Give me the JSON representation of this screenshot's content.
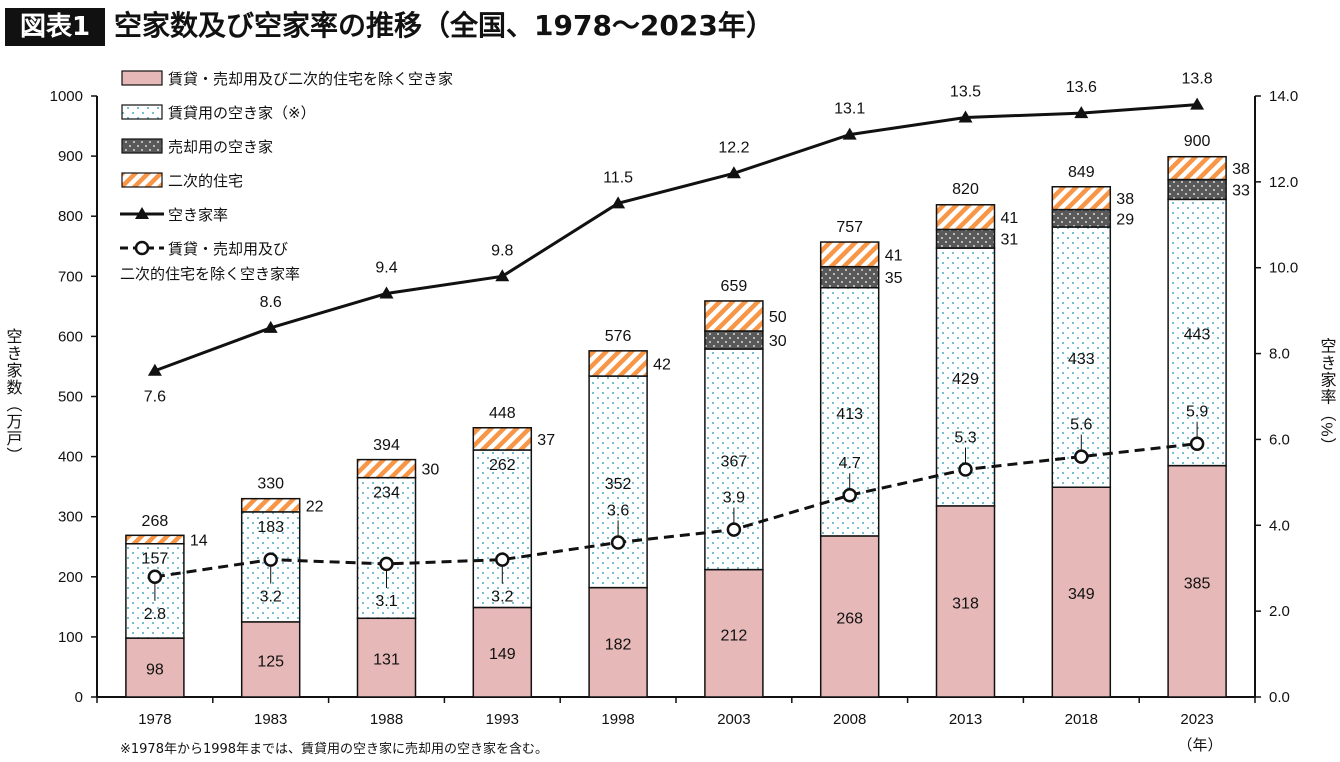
{
  "header": {
    "badge": "図表1",
    "title": "空家数及び空家率の推移（全国、1978～2023年）"
  },
  "footnote": "※1978年から1998年までは、賃貸用の空き家に売却用の空き家を含む。",
  "chart_data": {
    "type": "bar",
    "subtype": "stacked bar with line overlay (dual axis)",
    "categories": [
      "1978",
      "1983",
      "1988",
      "1993",
      "1998",
      "2003",
      "2008",
      "2013",
      "2018",
      "2023"
    ],
    "xunit": "（年）",
    "ylabel": "空き家数（万戸）",
    "ylabel_right": "空き家率（%）",
    "ylim": [
      0,
      1000
    ],
    "yticks": [
      0,
      100,
      200,
      300,
      400,
      500,
      600,
      700,
      800,
      900,
      1000
    ],
    "ylim_right": [
      0,
      14
    ],
    "yticks_right": [
      "0.0",
      "2.0",
      "4.0",
      "6.0",
      "8.0",
      "10.0",
      "12.0",
      "14.0"
    ],
    "grid": false,
    "legend": "top-left",
    "series": [
      {
        "name": "賃貸・売却用及び二次的住宅を除く空き家",
        "kind": "bar",
        "color": "#e6b8b7",
        "values": [
          98,
          125,
          131,
          149,
          182,
          212,
          268,
          318,
          349,
          385
        ]
      },
      {
        "name": "賃貸用の空き家（※）",
        "kind": "bar",
        "color": "#ffffff",
        "dot_color": "#4bacc6",
        "values": [
          157,
          183,
          234,
          262,
          352,
          367,
          413,
          429,
          433,
          443
        ]
      },
      {
        "name": "売却用の空き家",
        "kind": "bar",
        "color": "#595959",
        "values": [
          null,
          null,
          null,
          null,
          null,
          30,
          35,
          31,
          29,
          33
        ]
      },
      {
        "name": "二次的住宅",
        "kind": "bar",
        "color": "#f79646",
        "values": [
          14,
          22,
          30,
          37,
          42,
          50,
          41,
          41,
          38,
          38
        ]
      },
      {
        "name": "空き家率",
        "kind": "line",
        "axis": "right",
        "values": [
          7.6,
          8.6,
          9.4,
          9.8,
          11.5,
          12.2,
          13.1,
          13.5,
          13.6,
          13.8
        ]
      },
      {
        "name": "賃貸・売却用及び\n二次的住宅を除く空き家率",
        "kind": "line-dashed",
        "axis": "right",
        "values": [
          2.8,
          3.2,
          3.1,
          3.2,
          3.6,
          3.9,
          4.7,
          5.3,
          5.6,
          5.9
        ]
      }
    ],
    "totals": [
      268,
      330,
      394,
      448,
      576,
      659,
      757,
      820,
      849,
      900
    ]
  }
}
